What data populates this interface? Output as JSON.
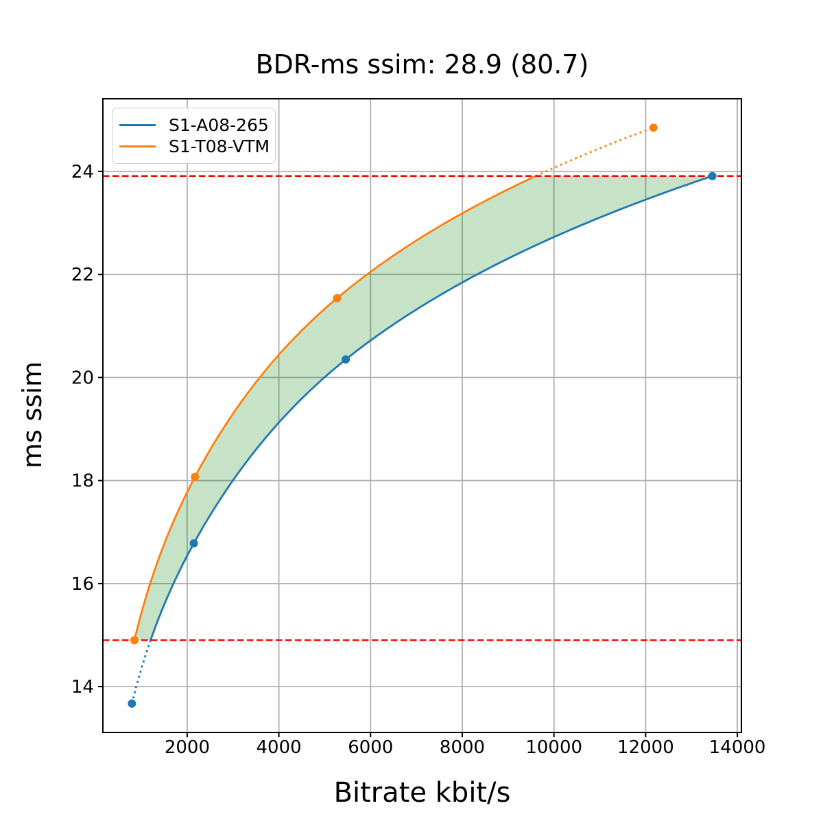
{
  "title": "BDR-ms ssim: 28.9 (80.7)",
  "chart_data": {
    "type": "line",
    "title": "BDR-ms ssim: 28.9 (80.7)",
    "xlabel": "Bitrate kbit/s",
    "ylabel": "ms ssim",
    "xlim": [
      162,
      14088
    ],
    "ylim": [
      13.11,
      25.41
    ],
    "x_ticks": [
      2000,
      4000,
      6000,
      8000,
      10000,
      12000,
      14000
    ],
    "y_ticks": [
      14,
      16,
      18,
      20,
      22,
      24
    ],
    "grid": true,
    "legend_position": "upper-left",
    "interpolation": "pchip-log10-bitrate-vs-quality",
    "series": [
      {
        "name": "S1-A08-265",
        "color": "#1f77b4",
        "points": [
          [
            795,
            13.67
          ],
          [
            2145,
            16.78
          ],
          [
            5460,
            20.35
          ],
          [
            13455,
            23.91
          ]
        ]
      },
      {
        "name": "S1-T08-VTM",
        "color": "#ff7f0e",
        "points": [
          [
            850,
            14.9
          ],
          [
            2170,
            18.07
          ],
          [
            5270,
            21.54
          ],
          [
            12170,
            24.85
          ]
        ]
      }
    ],
    "overlap_lines": {
      "low": 14.9,
      "high": 23.91,
      "color": "#ff0000",
      "style": "dashed"
    },
    "fill_between_color": "rgba(0,128,0,0.22)",
    "grid_color": "#b0b0b0",
    "spine_color": "#000000",
    "background": "#ffffff"
  }
}
